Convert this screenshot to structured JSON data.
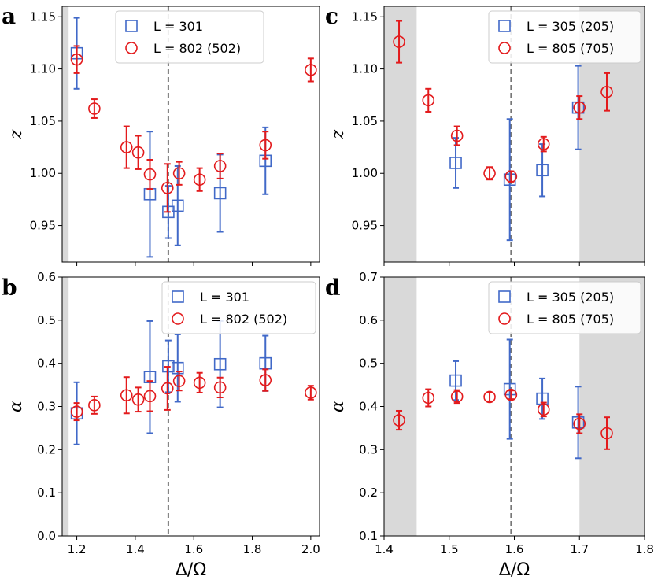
{
  "chart_data": [
    {
      "panel": "a",
      "type": "scatter",
      "xlabel": "",
      "ylabel": "z",
      "xlim": [
        1.15,
        2.03
      ],
      "ylim": [
        0.915,
        1.16
      ],
      "yticks": [
        "0.95",
        "1.00",
        "1.05",
        "1.10",
        "1.15"
      ],
      "xticks": [],
      "vline": 1.513,
      "shaded": [
        [
          1.15,
          1.172
        ]
      ],
      "legend_position": "upper-center",
      "series": [
        {
          "name": "L = 301",
          "marker": "square",
          "color": "#4169c8",
          "x": [
            1.2,
            1.45,
            1.513,
            1.545,
            1.69,
            1.845
          ],
          "y": [
            1.115,
            0.98,
            0.963,
            0.969,
            0.981,
            1.012
          ],
          "err": [
            0.034,
            0.06,
            0.025,
            0.038,
            0.037,
            0.032
          ]
        },
        {
          "name": "L = 802 (502)",
          "marker": "circle",
          "color": "#e31a1c",
          "x": [
            1.2,
            1.26,
            1.37,
            1.41,
            1.45,
            1.51,
            1.55,
            1.62,
            1.69,
            1.845,
            2.0
          ],
          "y": [
            1.109,
            1.062,
            1.025,
            1.02,
            0.999,
            0.986,
            1.0,
            0.994,
            1.007,
            1.027,
            1.099
          ],
          "err": [
            0.013,
            0.009,
            0.02,
            0.016,
            0.014,
            0.023,
            0.011,
            0.011,
            0.012,
            0.013,
            0.011
          ]
        }
      ]
    },
    {
      "panel": "b",
      "type": "scatter",
      "xlabel": "Δ/Ω",
      "ylabel": "α",
      "xlim": [
        1.15,
        2.03
      ],
      "ylim": [
        0.0,
        0.6
      ],
      "yticks": [
        "0.0",
        "0.1",
        "0.2",
        "0.3",
        "0.4",
        "0.5",
        "0.6"
      ],
      "xticks": [
        "1.2",
        "1.4",
        "1.6",
        "1.8",
        "2.0"
      ],
      "vline": 1.513,
      "shaded": [
        [
          1.15,
          1.172
        ]
      ],
      "legend_position": "upper-right",
      "series": [
        {
          "name": "L = 301",
          "marker": "square",
          "color": "#4169c8",
          "x": [
            1.2,
            1.45,
            1.513,
            1.545,
            1.69,
            1.845
          ],
          "y": [
            0.284,
            0.368,
            0.393,
            0.389,
            0.398,
            0.4
          ],
          "err": [
            0.072,
            0.13,
            0.06,
            0.078,
            0.1,
            0.064
          ]
        },
        {
          "name": "L = 802 (502)",
          "marker": "circle",
          "color": "#e31a1c",
          "x": [
            1.2,
            1.26,
            1.37,
            1.41,
            1.45,
            1.51,
            1.55,
            1.62,
            1.69,
            1.845,
            2.0
          ],
          "y": [
            0.288,
            0.303,
            0.326,
            0.316,
            0.324,
            0.342,
            0.359,
            0.355,
            0.344,
            0.361,
            0.332
          ],
          "err": [
            0.02,
            0.02,
            0.042,
            0.028,
            0.035,
            0.05,
            0.022,
            0.023,
            0.023,
            0.025,
            0.016
          ]
        }
      ]
    },
    {
      "panel": "c",
      "type": "scatter",
      "xlabel": "",
      "ylabel": "z",
      "xlim": [
        1.4,
        1.8
      ],
      "ylim": [
        0.915,
        1.16
      ],
      "yticks": [
        "0.95",
        "1.00",
        "1.05",
        "1.10",
        "1.15"
      ],
      "xticks": [],
      "vline": 1.595,
      "shaded": [
        [
          1.4,
          1.45
        ],
        [
          1.7,
          1.8
        ]
      ],
      "legend_position": "upper-right",
      "series": [
        {
          "name": "L = 305 (205)",
          "marker": "square",
          "color": "#4169c8",
          "x": [
            1.51,
            1.593,
            1.643,
            1.698
          ],
          "y": [
            1.01,
            0.994,
            1.003,
            1.063
          ],
          "err": [
            0.024,
            0.058,
            0.025,
            0.04
          ]
        },
        {
          "name": "L = 805 (705)",
          "marker": "circle",
          "color": "#e31a1c",
          "x": [
            1.423,
            1.468,
            1.512,
            1.562,
            1.595,
            1.645,
            1.7,
            1.742
          ],
          "y": [
            1.126,
            1.07,
            1.036,
            1.0,
            0.997,
            1.028,
            1.063,
            1.078
          ],
          "err": [
            0.02,
            0.011,
            0.009,
            0.006,
            0.005,
            0.007,
            0.011,
            0.018
          ]
        }
      ]
    },
    {
      "panel": "d",
      "type": "scatter",
      "xlabel": "Δ/Ω",
      "ylabel": "α",
      "xlim": [
        1.4,
        1.8
      ],
      "ylim": [
        0.1,
        0.7
      ],
      "yticks": [
        "0.1",
        "0.2",
        "0.3",
        "0.4",
        "0.5",
        "0.6",
        "0.7"
      ],
      "xticks": [
        "1.4",
        "1.5",
        "1.6",
        "1.7",
        "1.8"
      ],
      "vline": 1.595,
      "shaded": [
        [
          1.4,
          1.45
        ],
        [
          1.7,
          1.8
        ]
      ],
      "legend_position": "upper-right",
      "series": [
        {
          "name": "L = 305 (205)",
          "marker": "square",
          "color": "#4169c8",
          "x": [
            1.51,
            1.593,
            1.643,
            1.698
          ],
          "y": [
            0.46,
            0.44,
            0.418,
            0.363
          ],
          "err": [
            0.045,
            0.115,
            0.047,
            0.083
          ]
        },
        {
          "name": "L = 805 (705)",
          "marker": "circle",
          "color": "#e31a1c",
          "x": [
            1.423,
            1.468,
            1.512,
            1.562,
            1.595,
            1.645,
            1.7,
            1.742
          ],
          "y": [
            0.368,
            0.42,
            0.423,
            0.422,
            0.427,
            0.393,
            0.36,
            0.338
          ],
          "err": [
            0.022,
            0.02,
            0.015,
            0.01,
            0.01,
            0.016,
            0.022,
            0.037
          ]
        }
      ]
    }
  ]
}
